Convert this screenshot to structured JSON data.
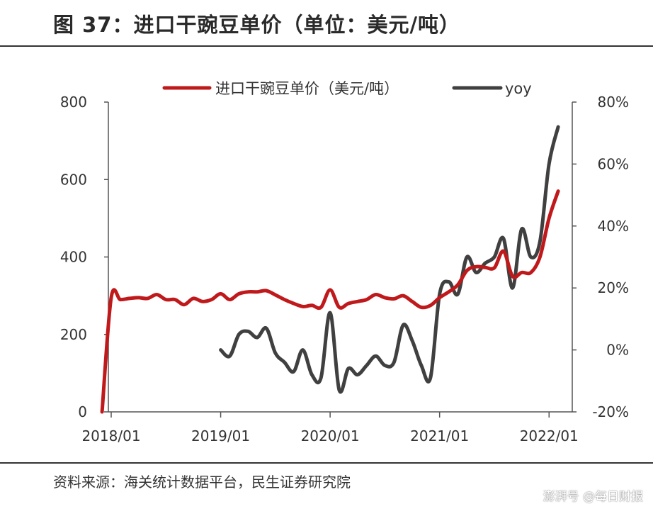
{
  "title": "图 37：进口干豌豆单价（单位：美元/吨）",
  "source": "资料来源：海关统计数据平台，民生证券研究院",
  "watermark": "澎湃号 @每日财报",
  "chart_data": {
    "type": "line",
    "x_ticks": [
      "2018/01",
      "2019/01",
      "2020/01",
      "2021/01",
      "2022/01"
    ],
    "y_left": {
      "ticks": [
        "0",
        "200",
        "400",
        "600",
        "800"
      ],
      "min": 0,
      "max": 800
    },
    "y_right": {
      "ticks": [
        "-20%",
        "0%",
        "20%",
        "40%",
        "60%",
        "80%"
      ],
      "min": -0.2,
      "max": 0.8
    },
    "colors": {
      "price": "#c0191b",
      "yoy": "#404040"
    },
    "series": [
      {
        "name": "进口干豌豆单价（美元/吨）",
        "axis": "left",
        "x": [
          "2017-12",
          "2018-01",
          "2018-02",
          "2018-03",
          "2018-04",
          "2018-05",
          "2018-06",
          "2018-07",
          "2018-08",
          "2018-09",
          "2018-10",
          "2018-11",
          "2018-12",
          "2019-01",
          "2019-02",
          "2019-03",
          "2019-04",
          "2019-05",
          "2019-06",
          "2019-07",
          "2019-08",
          "2019-09",
          "2019-10",
          "2019-11",
          "2019-12",
          "2020-01",
          "2020-02",
          "2020-03",
          "2020-04",
          "2020-05",
          "2020-06",
          "2020-07",
          "2020-08",
          "2020-09",
          "2020-10",
          "2020-11",
          "2020-12",
          "2021-01",
          "2021-02",
          "2021-03",
          "2021-04",
          "2021-05",
          "2021-06",
          "2021-07",
          "2021-08",
          "2021-09",
          "2021-10",
          "2021-11",
          "2021-12",
          "2022-01",
          "2022-02"
        ],
        "values": [
          0,
          295,
          290,
          293,
          295,
          293,
          303,
          290,
          290,
          277,
          293,
          285,
          290,
          305,
          290,
          305,
          310,
          310,
          313,
          302,
          290,
          280,
          272,
          275,
          270,
          315,
          270,
          280,
          285,
          290,
          303,
          295,
          292,
          300,
          285,
          270,
          275,
          295,
          310,
          328,
          365,
          375,
          373,
          372,
          415,
          350,
          360,
          360,
          400,
          500,
          570
        ]
      },
      {
        "name": "yoy",
        "axis": "right",
        "x": [
          "2019-01",
          "2019-02",
          "2019-03",
          "2019-04",
          "2019-05",
          "2019-06",
          "2019-07",
          "2019-08",
          "2019-09",
          "2019-10",
          "2019-11",
          "2019-12",
          "2020-01",
          "2020-02",
          "2020-03",
          "2020-04",
          "2020-05",
          "2020-06",
          "2020-07",
          "2020-08",
          "2020-09",
          "2020-10",
          "2020-11",
          "2020-12",
          "2021-01",
          "2021-02",
          "2021-03",
          "2021-04",
          "2021-05",
          "2021-06",
          "2021-07",
          "2021-08",
          "2021-09",
          "2021-10",
          "2021-11",
          "2021-12",
          "2022-01",
          "2022-02"
        ],
        "values": [
          0.0,
          -0.02,
          0.05,
          0.06,
          0.04,
          0.07,
          -0.01,
          -0.04,
          -0.07,
          0.0,
          -0.08,
          -0.09,
          0.12,
          -0.13,
          -0.06,
          -0.08,
          -0.05,
          -0.02,
          -0.05,
          -0.04,
          0.08,
          0.03,
          -0.05,
          -0.09,
          0.18,
          0.22,
          0.18,
          0.3,
          0.25,
          0.28,
          0.3,
          0.36,
          0.2,
          0.39,
          0.3,
          0.35,
          0.6,
          0.72
        ]
      }
    ]
  }
}
